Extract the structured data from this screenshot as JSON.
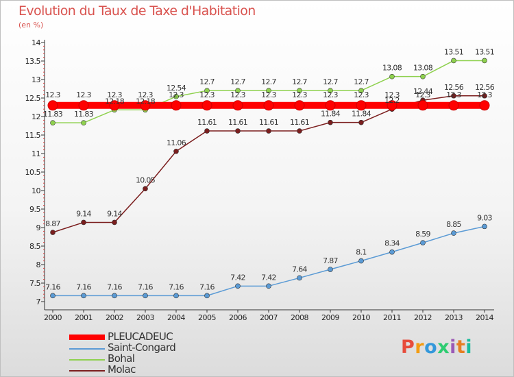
{
  "header": {
    "title": "Evolution du Taux de Taxe d'Habitation",
    "unit": "(en %)"
  },
  "logo": {
    "text": "Proxiti",
    "colors": [
      "#e74c3c",
      "#f39c12",
      "#3498db",
      "#2ecc71",
      "#9b59b6",
      "#e67e22",
      "#1abc9c"
    ]
  },
  "chart_data": {
    "type": "line",
    "title": "Evolution du Taux de Taxe d'Habitation",
    "ylabel": "(en %)",
    "xlabel": "",
    "x": [
      "2000",
      "2001",
      "2002",
      "2003",
      "2004",
      "2005",
      "2006",
      "2007",
      "2008",
      "2009",
      "2010",
      "2011",
      "2012",
      "2013",
      "2014"
    ],
    "ylim": [
      7,
      14
    ],
    "yticks": [
      "7",
      "7.5",
      "8",
      "8.5",
      "9",
      "9.5",
      "10",
      "10.5",
      "11",
      "11.5",
      "12",
      "12.5",
      "13",
      "13.5",
      "14"
    ],
    "grid": false,
    "legend_position": "bottom-left",
    "series": [
      {
        "name": "PLEUCADEUC",
        "color": "#ff0000",
        "values": [
          12.3,
          12.3,
          12.3,
          12.3,
          12.3,
          12.3,
          12.3,
          12.3,
          12.3,
          12.3,
          12.3,
          12.3,
          12.3,
          12.3,
          12.3
        ],
        "labels": [
          "12.3",
          "12.3",
          "12.3",
          "12.3",
          "12.3",
          "12.3",
          "12.3",
          "12.3",
          "12.3",
          "12.3",
          "12.3",
          "12.3",
          "12.3",
          "12.3",
          "12.3"
        ]
      },
      {
        "name": "Saint-Congard",
        "color": "#5b9bd5",
        "values": [
          7.16,
          7.16,
          7.16,
          7.16,
          7.16,
          7.16,
          7.42,
          7.42,
          7.64,
          7.87,
          8.1,
          8.34,
          8.59,
          8.85,
          9.03
        ],
        "labels": [
          "7.16",
          "7.16",
          "7.16",
          "7.16",
          "7.16",
          "7.16",
          "7.42",
          "7.42",
          "7.64",
          "7.87",
          "8.1",
          "8.34",
          "8.59",
          "8.85",
          "9.03"
        ]
      },
      {
        "name": "Bohal",
        "color": "#8fd14f",
        "values": [
          11.83,
          11.83,
          12.18,
          12.18,
          12.54,
          12.7,
          12.7,
          12.7,
          12.7,
          12.7,
          12.7,
          13.08,
          13.08,
          13.51,
          13.51
        ],
        "labels": [
          "11.83",
          "11.83",
          "12.18",
          "12.18",
          "12.54",
          "12.7",
          "12.7",
          "12.7",
          "12.7",
          "12.7",
          "12.7",
          "13.08",
          "13.08",
          "13.51",
          "13.51"
        ]
      },
      {
        "name": "Molac",
        "color": "#7b1e1e",
        "values": [
          8.87,
          9.14,
          9.14,
          10.05,
          11.06,
          11.61,
          11.61,
          11.61,
          11.61,
          11.84,
          11.84,
          12.2,
          12.44,
          12.56,
          12.56
        ],
        "labels": [
          "8.87",
          "9.14",
          "9.14",
          "10.05",
          "11.06",
          "11.61",
          "11.61",
          "11.61",
          "11.61",
          "11.84",
          "11.84",
          "12.2",
          "12.44",
          "12.56",
          "12.56"
        ]
      }
    ]
  }
}
